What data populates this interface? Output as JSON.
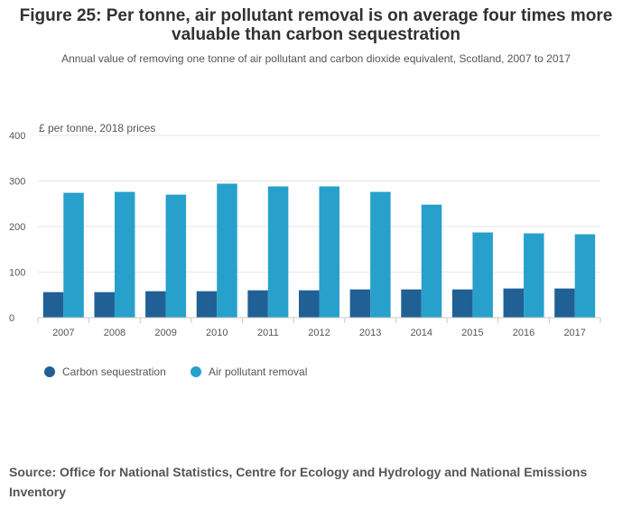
{
  "header": {
    "title": "Figure 25: Per tonne, air pollutant removal is on average four times more valuable than carbon sequestration",
    "subtitle": "Annual value of removing one tonne of air pollutant and carbon dioxide equivalent, Scotland, 2007 to 2017"
  },
  "footer": {
    "source": "Source: Office for National Statistics, Centre for Ecology and Hydrology and National Emissions Inventory"
  },
  "colors": {
    "carbon": "#206095",
    "air": "#27a0cc",
    "grid": "#e6e6e6",
    "axis": "#c8c8c8",
    "text": "#555555"
  },
  "chart_data": {
    "type": "bar",
    "title": "Figure 25: Per tonne, air pollutant removal is on average four times more valuable than carbon sequestration",
    "subtitle": "Annual value of removing one tonne of air pollutant and carbon dioxide equivalent, Scotland, 2007 to 2017",
    "xlabel": "",
    "ylabel": "£ per tonne, 2018 prices",
    "ylim": [
      0,
      400
    ],
    "yticks": [
      0,
      100,
      200,
      300,
      400
    ],
    "grid": true,
    "legend_position": "bottom-left",
    "categories": [
      "2007",
      "2008",
      "2009",
      "2010",
      "2011",
      "2012",
      "2013",
      "2014",
      "2015",
      "2016",
      "2017"
    ],
    "series": [
      {
        "name": "Carbon sequestration",
        "values": [
          56,
          56,
          58,
          58,
          60,
          60,
          62,
          62,
          62,
          64,
          64
        ]
      },
      {
        "name": "Air pollutant removal",
        "values": [
          274,
          276,
          270,
          294,
          288,
          288,
          276,
          248,
          187,
          185,
          183
        ]
      }
    ]
  }
}
